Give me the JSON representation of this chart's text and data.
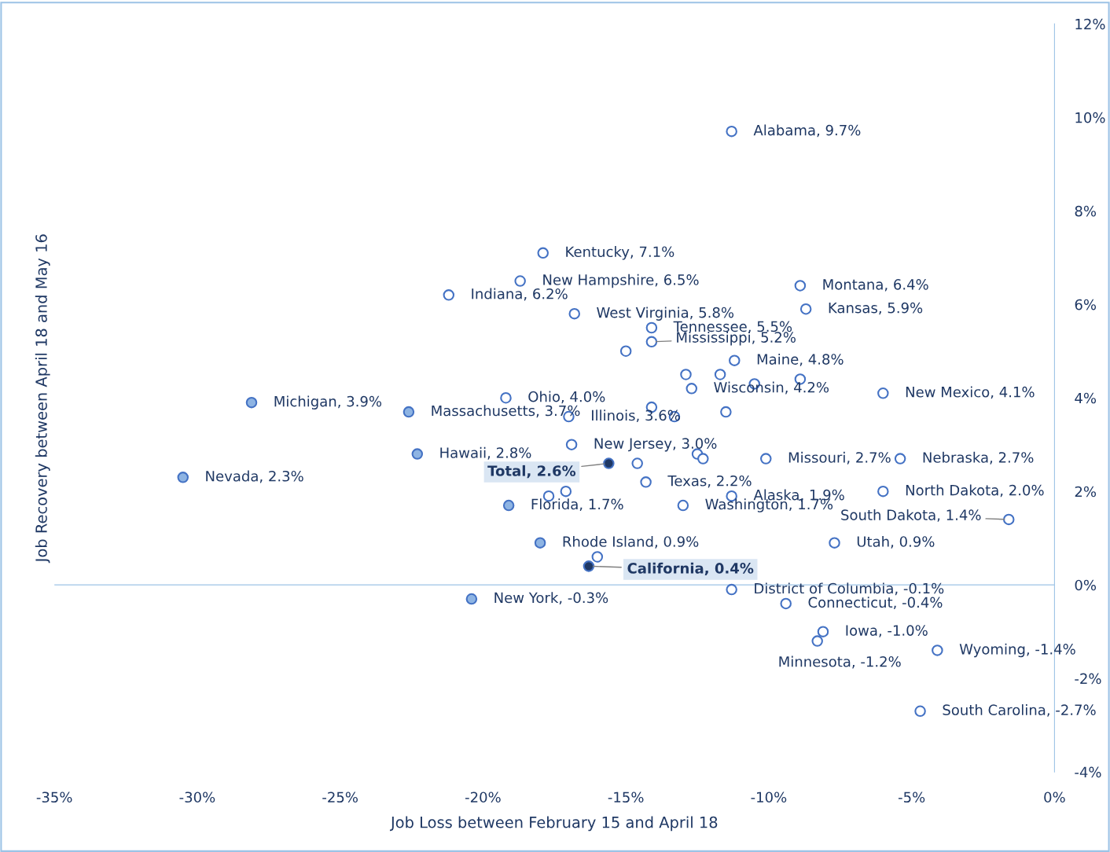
{
  "chart_data": {
    "type": "scatter",
    "xlabel": "Job Loss between February 15 and April 18",
    "ylabel": "Job Recovery between April 18 and May 16",
    "xlim": [
      -35,
      0
    ],
    "ylim": [
      -4,
      12
    ],
    "xticks": [
      {
        "value": -35,
        "label": "-35%"
      },
      {
        "value": -30,
        "label": "-30%"
      },
      {
        "value": -25,
        "label": "-25%"
      },
      {
        "value": -20,
        "label": "-20%"
      },
      {
        "value": -15,
        "label": "-15%"
      },
      {
        "value": -10,
        "label": "-10%"
      },
      {
        "value": -5,
        "label": "-5%"
      },
      {
        "value": 0,
        "label": "0%"
      }
    ],
    "yticks": [
      {
        "value": -4,
        "label": "-4%"
      },
      {
        "value": -2,
        "label": "-2%"
      },
      {
        "value": 0,
        "label": "0%"
      },
      {
        "value": 2,
        "label": "2%"
      },
      {
        "value": 4,
        "label": "4%"
      },
      {
        "value": 6,
        "label": "6%"
      },
      {
        "value": 8,
        "label": "8%"
      },
      {
        "value": 10,
        "label": "10%"
      },
      {
        "value": 12,
        "label": "12%"
      }
    ],
    "ref_lines": [
      {
        "axis": "y",
        "value": 0,
        "color": "#9dc3e6"
      }
    ],
    "grid": false,
    "legend": false,
    "marker": "circle",
    "series": [
      {
        "color": "#ffffff",
        "x": [
          -11.3,
          -17.9,
          -18.7,
          -21.2,
          -8.9,
          -8.7,
          -16.8,
          -14.1,
          -14.1,
          -15.0,
          -11.2,
          -12.9,
          -11.7,
          -12.7,
          -10.5,
          -8.9,
          -6.0,
          -19.2,
          -17.0,
          -14.1,
          -13.3,
          -11.5,
          -16.9,
          -12.5,
          -12.3,
          -10.1,
          -5.4,
          -14.6,
          -14.3,
          -6.0,
          -17.1,
          -17.7,
          -11.3,
          -13.0,
          -1.6,
          -7.7,
          -16.0,
          -11.3,
          -9.4,
          -8.1,
          -8.3,
          -4.1,
          -4.7
        ],
        "values": [
          9.7,
          7.1,
          6.5,
          6.2,
          6.4,
          5.9,
          5.8,
          5.5,
          5.2,
          5.0,
          4.8,
          4.5,
          4.5,
          4.2,
          4.3,
          4.4,
          4.1,
          4.0,
          3.6,
          3.8,
          3.6,
          3.7,
          3.0,
          2.8,
          2.7,
          2.7,
          2.7,
          2.6,
          2.2,
          2.0,
          2.0,
          1.9,
          1.9,
          1.7,
          1.4,
          0.9,
          0.6,
          -0.1,
          -0.4,
          -1.0,
          -1.2,
          -1.4,
          -2.7
        ]
      },
      {
        "color": "#8eb4e3",
        "x": [
          -28.1,
          -22.6,
          -22.3,
          -30.5,
          -19.1,
          -18.0,
          -20.4
        ],
        "values": [
          3.9,
          3.7,
          2.8,
          2.3,
          1.7,
          0.9,
          -0.3
        ]
      },
      {
        "color": "#1f3864",
        "x": [
          -15.6,
          -16.3
        ],
        "values": [
          2.6,
          0.4
        ]
      }
    ],
    "annotations": [
      {
        "text": "Alabama, 9.7%",
        "x": -11.3,
        "y": 9.7
      },
      {
        "text": "Kentucky, 7.1%",
        "x": -17.9,
        "y": 7.1
      },
      {
        "text": "New Hampshire, 6.5%",
        "x": -18.7,
        "y": 6.5
      },
      {
        "text": "Indiana, 6.2%",
        "x": -21.2,
        "y": 6.2
      },
      {
        "text": "Montana, 6.4%",
        "x": -8.9,
        "y": 6.4
      },
      {
        "text": "Kansas, 5.9%",
        "x": -8.7,
        "y": 5.9
      },
      {
        "text": "West Virginia, 5.8%",
        "x": -16.8,
        "y": 5.8
      },
      {
        "text": "Tennessee, 5.5%",
        "x": -14.1,
        "y": 5.5
      },
      {
        "text": "Mississippi, 5.2%",
        "x": -14.1,
        "y": 5.2
      },
      {
        "text": "Maine, 4.8%",
        "x": -11.2,
        "y": 4.8
      },
      {
        "text": "Wisconsin, 4.2%",
        "x": -12.7,
        "y": 4.2
      },
      {
        "text": "New Mexico, 4.1%",
        "x": -6.0,
        "y": 4.1
      },
      {
        "text": "Ohio, 4.0%",
        "x": -19.2,
        "y": 4.0
      },
      {
        "text": "Michigan, 3.9%",
        "x": -28.1,
        "y": 3.9
      },
      {
        "text": "Massachusetts, 3.7%",
        "x": -22.6,
        "y": 3.7
      },
      {
        "text": "Illinois, 3.6%",
        "x": -17.0,
        "y": 3.6
      },
      {
        "text": "Hawaii, 2.8%",
        "x": -22.3,
        "y": 2.8
      },
      {
        "text": "New Jersey, 3.0%",
        "x": -16.9,
        "y": 3.0
      },
      {
        "text": "Missouri, 2.7%",
        "x": -10.1,
        "y": 2.7
      },
      {
        "text": "Nebraska, 2.7%",
        "x": -5.4,
        "y": 2.7
      },
      {
        "text": "Total, 2.6%",
        "x": -15.6,
        "y": 2.6
      },
      {
        "text": "Nevada, 2.3%",
        "x": -30.5,
        "y": 2.3
      },
      {
        "text": "Texas, 2.2%",
        "x": -14.3,
        "y": 2.2
      },
      {
        "text": "North Dakota, 2.0%",
        "x": -6.0,
        "y": 2.0
      },
      {
        "text": "Alaska, 1.9%",
        "x": -11.3,
        "y": 1.9
      },
      {
        "text": "Florida, 1.7%",
        "x": -19.1,
        "y": 1.7
      },
      {
        "text": "Washington, 1.7%",
        "x": -13.0,
        "y": 1.7
      },
      {
        "text": "South Dakota, 1.4%",
        "x": -1.6,
        "y": 1.4
      },
      {
        "text": "Utah, 0.9%",
        "x": -7.7,
        "y": 0.9
      },
      {
        "text": "Rhode Island, 0.9%",
        "x": -18.0,
        "y": 0.9
      },
      {
        "text": "California, 0.4%",
        "x": -16.3,
        "y": 0.4
      },
      {
        "text": "District of Columbia, -0.1%",
        "x": -11.3,
        "y": -0.1
      },
      {
        "text": "New York, -0.3%",
        "x": -20.4,
        "y": -0.3
      },
      {
        "text": "Connecticut, -0.4%",
        "x": -9.4,
        "y": -0.4
      },
      {
        "text": "Iowa, -1.0%",
        "x": -8.1,
        "y": -1.0
      },
      {
        "text": "Minnesota, -1.2%",
        "x": -8.3,
        "y": -1.2
      },
      {
        "text": "Wyoming, -1.4%",
        "x": -4.1,
        "y": -1.4
      },
      {
        "text": "South Carolina, -2.7%",
        "x": -4.7,
        "y": -2.7
      }
    ]
  }
}
